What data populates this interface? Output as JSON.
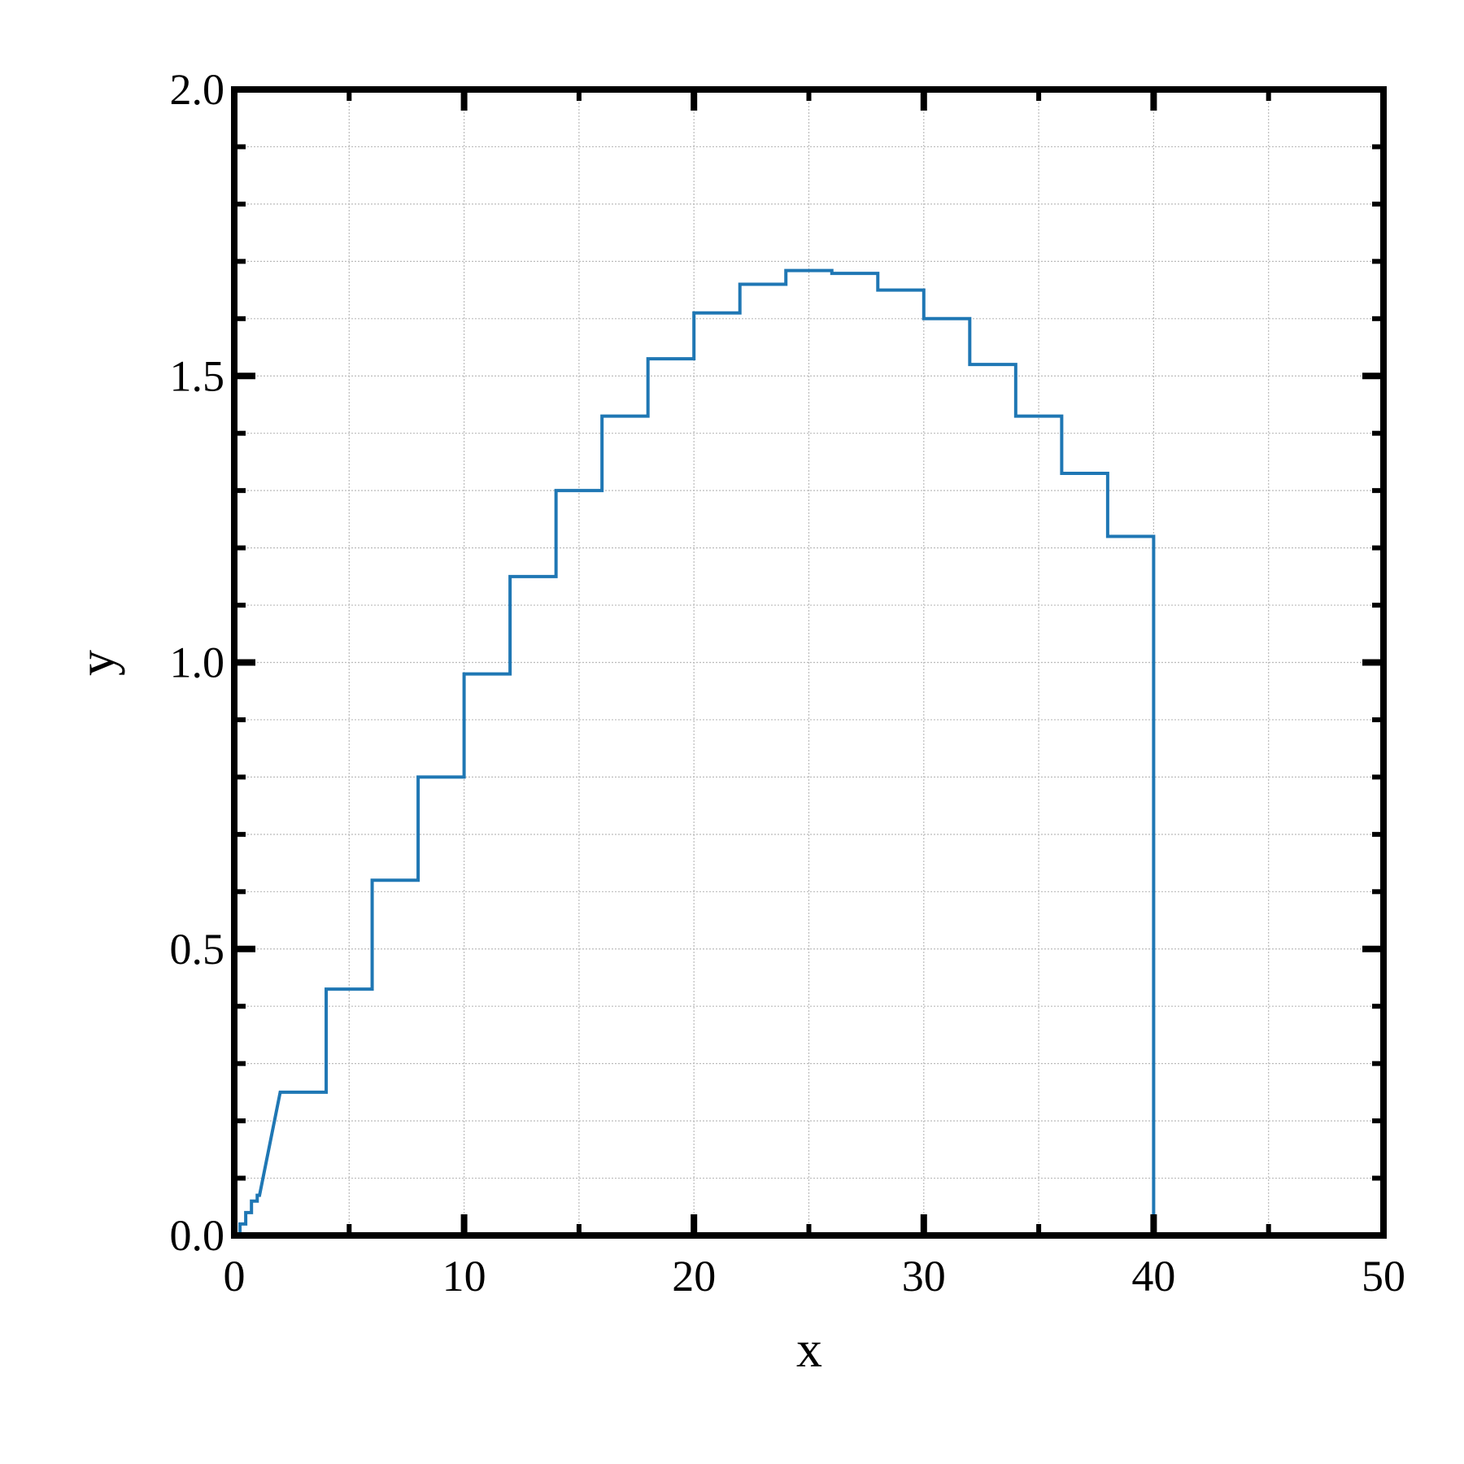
{
  "chart_data": {
    "type": "line",
    "x_label": "x",
    "y_label": "y",
    "x": [
      0.25,
      0.25,
      0.5,
      0.5,
      0.75,
      0.75,
      1,
      1,
      1.1,
      2,
      4,
      4,
      6,
      6,
      8,
      8,
      10,
      10,
      12,
      12,
      14,
      14,
      16,
      16,
      18,
      18,
      20,
      20,
      22,
      22,
      24,
      24,
      26,
      26,
      28,
      28,
      30,
      30,
      32,
      32,
      34,
      34,
      36,
      36,
      38,
      38,
      40,
      40
    ],
    "series": [
      {
        "color": "#1f77b4",
        "values": [
          0,
          0.02,
          0.02,
          0.04,
          0.04,
          0.06,
          0.06,
          0.07,
          0.07,
          0.25,
          0.25,
          0.43,
          0.43,
          0.62,
          0.62,
          0.8,
          0.8,
          0.98,
          0.98,
          1.15,
          1.15,
          1.3,
          1.3,
          1.43,
          1.43,
          1.53,
          1.53,
          1.61,
          1.61,
          1.66,
          1.66,
          1.684,
          1.684,
          1.679,
          1.679,
          1.65,
          1.65,
          1.6,
          1.6,
          1.52,
          1.52,
          1.43,
          1.43,
          1.33,
          1.33,
          1.22,
          1.22,
          0
        ]
      }
    ],
    "xlim": [
      0,
      50
    ],
    "ylim": [
      0,
      2
    ],
    "xticks": [
      0,
      10,
      20,
      30,
      40,
      50
    ],
    "yticks": [
      {
        "value": 0,
        "label": "0.0"
      },
      {
        "value": 0.5,
        "label": "0.5"
      },
      {
        "value": 1,
        "label": "1.0"
      },
      {
        "value": 1.5,
        "label": "1.5"
      },
      {
        "value": 2,
        "label": "2.0"
      }
    ],
    "xminorticks": [
      5,
      15,
      25,
      35,
      45
    ],
    "yminorticks": [
      0.1,
      0.2,
      0.3,
      0.4,
      0.6,
      0.7,
      0.8,
      0.9,
      1.1,
      1.2,
      1.3,
      1.4,
      1.6,
      1.7,
      1.8,
      1.9
    ],
    "grid": true
  }
}
